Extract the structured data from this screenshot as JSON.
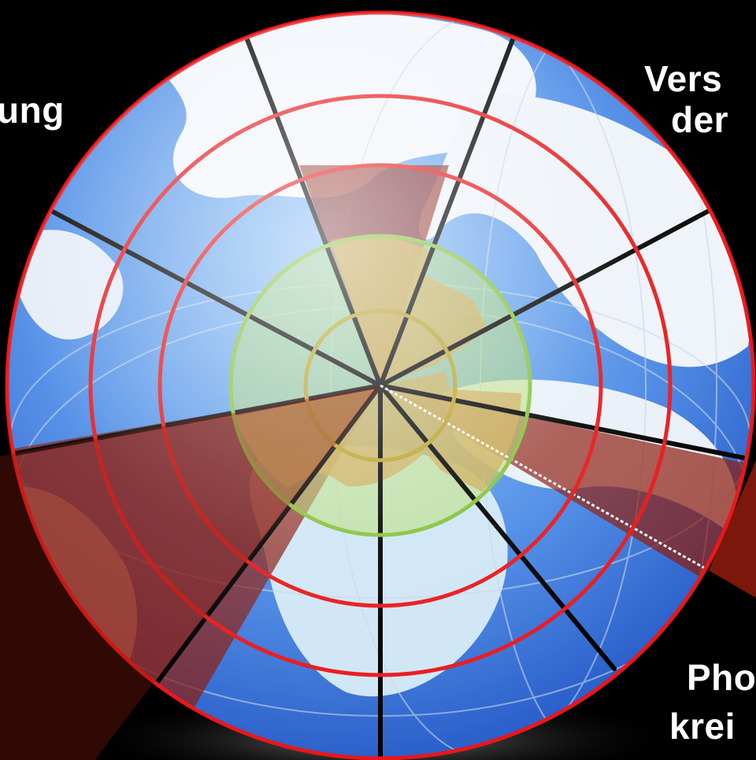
{
  "labels": {
    "top_left": "ung",
    "top_right_line1": "Vers",
    "top_right_line2": "der",
    "bottom_right_line1": "Pho",
    "bottom_right_line2": "krei"
  },
  "colors": {
    "background": "#000000",
    "ring": "#e8171a",
    "green_ring": "#86c23a",
    "orange_ring": "#d88a1c",
    "spoke": "#000000",
    "sector_fill": "#8a1a0c",
    "orange_fill": "#e8703a",
    "green_fill": "#b7dc6f",
    "ocean": "#3a78e0",
    "land": "#f2f6fb"
  },
  "icons": [
    "globe-icon"
  ]
}
